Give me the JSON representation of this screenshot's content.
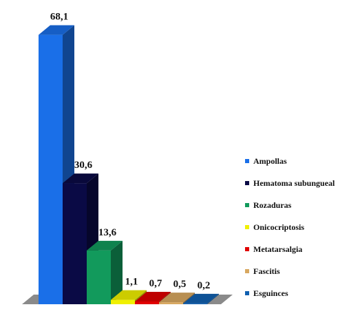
{
  "chart_data": {
    "type": "bar",
    "three_d": true,
    "categories": [
      "Ampollas",
      "Hematoma subungueal",
      "Rozaduras",
      "Onicocriptosis",
      "Metatarsalgia",
      "Fascitis",
      "Esguinces"
    ],
    "values": [
      68.1,
      30.6,
      13.6,
      1.1,
      0.7,
      0.5,
      0.2
    ],
    "value_labels": [
      "68,1",
      "30,6",
      "13,6",
      "1,1",
      "0,7",
      "0,5",
      "0,2"
    ],
    "colors": [
      "#1a6fe8",
      "#0a0a45",
      "#129a5c",
      "#f0f000",
      "#e00000",
      "#d8a860",
      "#1060b0"
    ],
    "ylim": [
      0,
      70
    ],
    "legend_position": "right",
    "grid": false,
    "title": "",
    "xlabel": "",
    "ylabel": ""
  }
}
